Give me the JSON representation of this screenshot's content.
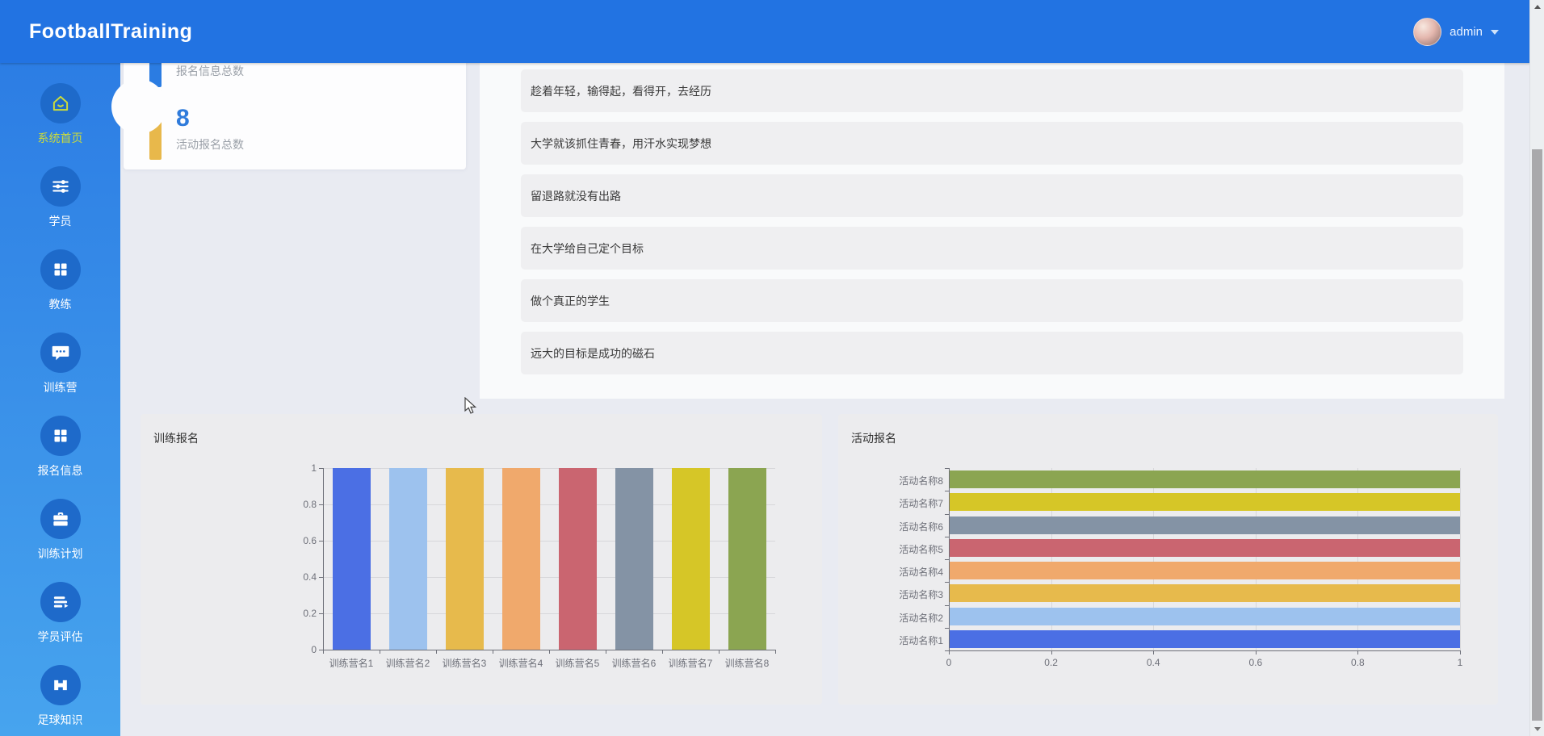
{
  "header": {
    "brand": "FootballTraining",
    "user": "admin"
  },
  "colors": {
    "header_bg": "#2273e2",
    "sidebar_top": "#2c7de4",
    "sidebar_bottom": "#47a4ee",
    "icon_circle": "#1e6aca",
    "active_accent": "#cddc39",
    "page_bg": "#e9ebf2",
    "stat_number": "#2f7bdb"
  },
  "sidebar": {
    "items": [
      {
        "label": "系统首页",
        "icon": "home-icon",
        "active": true
      },
      {
        "label": "学员",
        "icon": "sliders-icon",
        "active": false
      },
      {
        "label": "教练",
        "icon": "grid-icon",
        "active": false
      },
      {
        "label": "训练营",
        "icon": "chat-icon",
        "active": false
      },
      {
        "label": "报名信息",
        "icon": "grid-icon",
        "active": false
      },
      {
        "label": "训练计划",
        "icon": "briefcase-icon",
        "active": false
      },
      {
        "label": "学员评估",
        "icon": "list-icon",
        "active": false
      },
      {
        "label": "足球知识",
        "icon": "ticket-icon",
        "active": false
      }
    ]
  },
  "stats": {
    "items": [
      {
        "label": "报名信息总数",
        "bar_color": "#2b7ce2"
      },
      {
        "label": "活动报名总数",
        "value": "8",
        "bar_color": "#e8b84b"
      }
    ]
  },
  "quotes": [
    "趁着年轻，输得起，看得开，去经历",
    "大学就该抓住青春，用汗水实现梦想",
    "留退路就没有出路",
    "在大学给自己定个目标",
    "做个真正的学生",
    "远大的目标是成功的磁石"
  ],
  "palette": [
    "#4b6fe4",
    "#9dc2ee",
    "#e7ba4c",
    "#f0a96c",
    "#ca6570",
    "#8493a5",
    "#d6c627",
    "#8ba551"
  ],
  "chart_data": [
    {
      "type": "bar",
      "orientation": "vertical",
      "title": "训练报名",
      "categories": [
        "训练营名1",
        "训练营名2",
        "训练营名3",
        "训练营名4",
        "训练营名5",
        "训练营名6",
        "训练营名7",
        "训练营名8"
      ],
      "values": [
        1,
        1,
        1,
        1,
        1,
        1,
        1,
        1
      ],
      "ylim": [
        0,
        1
      ],
      "yticks": [
        0,
        0.2,
        0.4,
        0.6,
        0.8,
        1
      ],
      "grid": true,
      "legend": false
    },
    {
      "type": "bar",
      "orientation": "horizontal",
      "title": "活动报名",
      "categories": [
        "活动名称1",
        "活动名称2",
        "活动名称3",
        "活动名称4",
        "活动名称5",
        "活动名称6",
        "活动名称7",
        "活动名称8"
      ],
      "values": [
        1,
        1,
        1,
        1,
        1,
        1,
        1,
        1
      ],
      "xlim": [
        0,
        1
      ],
      "xticks": [
        0,
        0.2,
        0.4,
        0.6,
        0.8,
        1
      ],
      "grid": true,
      "legend": false
    }
  ]
}
